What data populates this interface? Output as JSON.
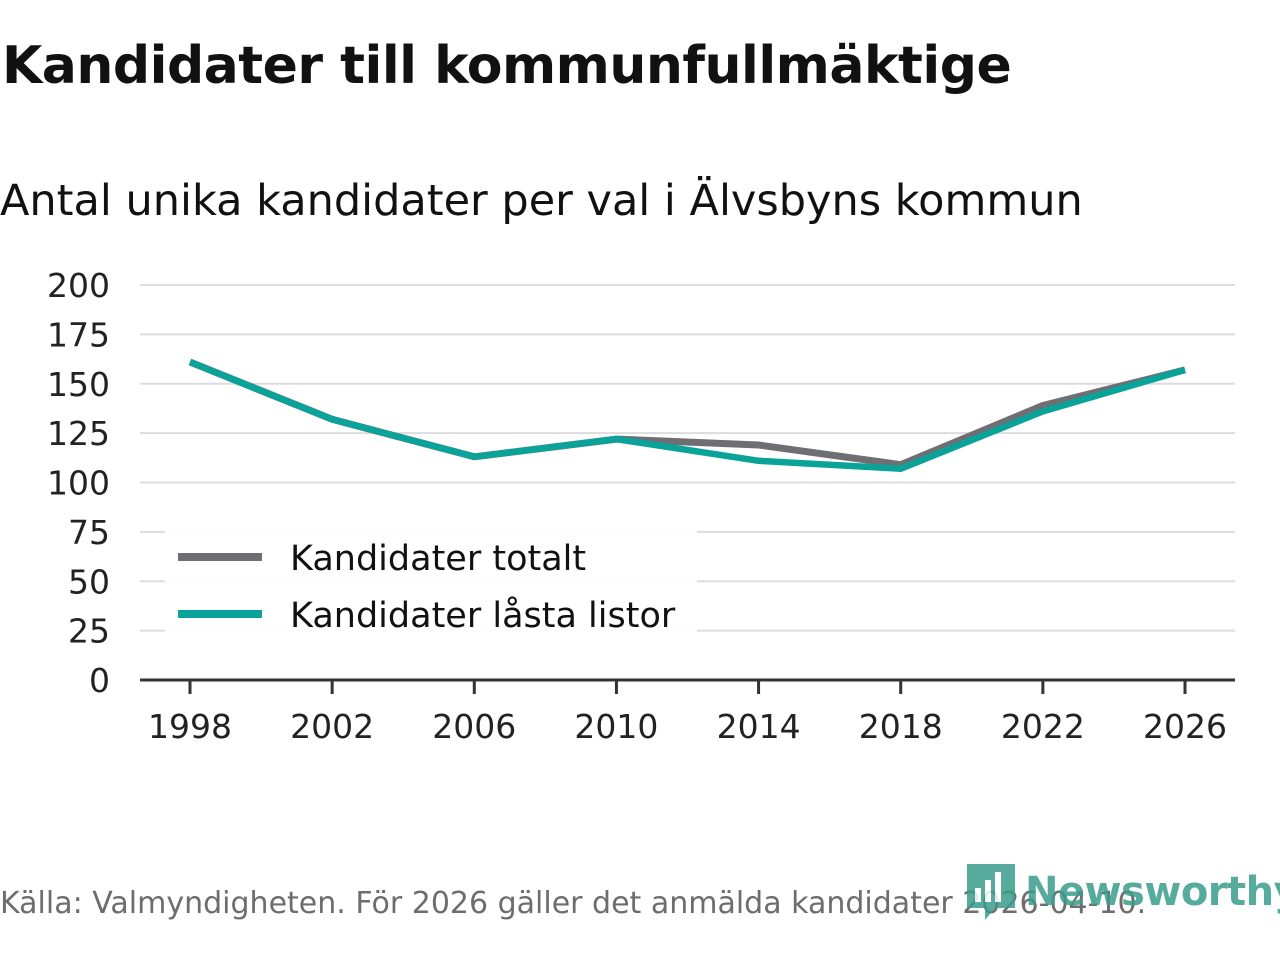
{
  "title": "Kandidater till kommunfullmäktige",
  "subtitle": "Antal unika kandidater per val i Älvsbyns kommun",
  "source": "Källa: Valmyndigheten. För 2026 gäller det anmälda kandidater 2026-04-10.",
  "logo": {
    "text": "Newsworthy",
    "icon": "newsworthy-logo-icon",
    "color": "#3a9d8b"
  },
  "chart_data": {
    "type": "line",
    "x": [
      1998,
      2002,
      2006,
      2010,
      2014,
      2018,
      2022,
      2026
    ],
    "series": [
      {
        "name": "Kandidater totalt",
        "color": "#6e6e73",
        "values": [
          161,
          132,
          113,
          122,
          119,
          109,
          139,
          157
        ]
      },
      {
        "name": "Kandidater låsta listor",
        "color": "#0aa39a",
        "values": [
          161,
          132,
          113,
          122,
          111,
          107,
          136,
          157
        ]
      }
    ],
    "yticks": [
      0,
      25,
      50,
      75,
      100,
      125,
      150,
      175,
      200
    ],
    "ylim": [
      0,
      200
    ],
    "xlabel": "",
    "ylabel": "",
    "grid": true,
    "legend_position": "bottom-left"
  }
}
